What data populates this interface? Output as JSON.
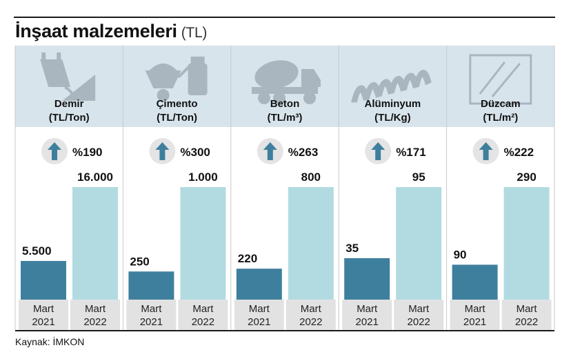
{
  "title": "İnşaat malzemeleri",
  "title_unit": "(TL)",
  "source": "Kaynak: İMKON",
  "colors": {
    "bar_2021": "#3f7f9e",
    "bar_2022": "#b2dbe1",
    "header_bg": "#d8e4ec",
    "plot_bg": "#ffffff",
    "axis_cell": "#e2e2e2",
    "arrow": "#3f7f9e",
    "badge": "#e4e4e4",
    "icon": "#a9b6bf"
  },
  "chart_data": {
    "type": "bar",
    "categories_per_panel": [
      {
        "line1": "Mart",
        "line2": "2021"
      },
      {
        "line1": "Mart",
        "line2": "2022"
      }
    ],
    "panels": [
      {
        "name": "Demir",
        "unit": "(TL/Ton)",
        "icon": "steel-ladle-icon",
        "change": "%190",
        "values": [
          5500,
          16000
        ],
        "labels": [
          "5.500",
          "16.000"
        ]
      },
      {
        "name": "Çimento",
        "unit": "(TL/Ton)",
        "icon": "cement-mixer-icon",
        "change": "%300",
        "values": [
          250,
          1000
        ],
        "labels": [
          "250",
          "1.000"
        ]
      },
      {
        "name": "Beton",
        "unit": "(TL/m³)",
        "icon": "concrete-truck-icon",
        "change": "%263",
        "values": [
          220,
          800
        ],
        "labels": [
          "220",
          "800"
        ]
      },
      {
        "name": "Alüminyum",
        "unit": "(TL/Kg)",
        "icon": "corrugated-sheet-icon",
        "change": "%171",
        "values": [
          35,
          95
        ],
        "labels": [
          "35",
          "95"
        ]
      },
      {
        "name": "Düzcam",
        "unit": "(TL/m²)",
        "icon": "glass-pane-icon",
        "change": "%222",
        "values": [
          90,
          290
        ],
        "labels": [
          "90",
          "290"
        ]
      }
    ]
  }
}
